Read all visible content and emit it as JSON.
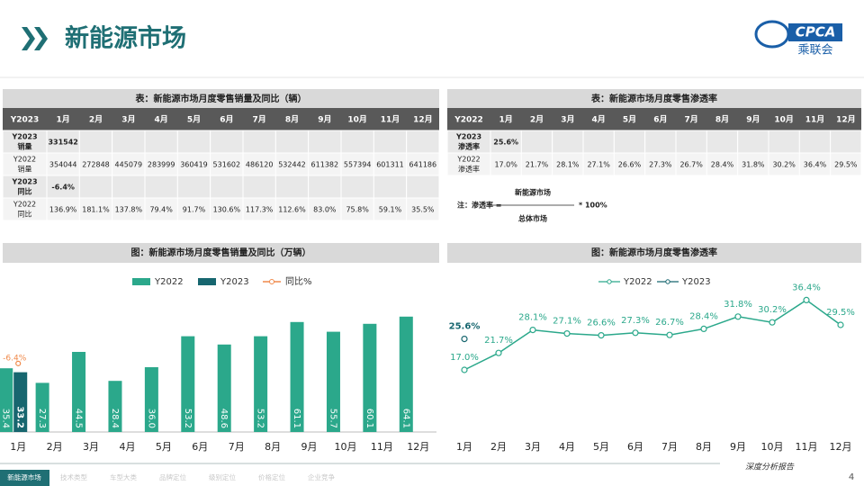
{
  "header": {
    "title": "新能源市场",
    "logo": "CPCA",
    "logo_sub": "乘联会"
  },
  "table1": {
    "title": "表：新能源市场月度零售销量及同比（辆）",
    "columns": [
      "Y2023",
      "1月",
      "2月",
      "3月",
      "4月",
      "5月",
      "6月",
      "7月",
      "8月",
      "9月",
      "10月",
      "11月",
      "12月"
    ],
    "rows": [
      {
        "label": [
          "Y2023",
          "销量"
        ],
        "cells": [
          "331542"
        ]
      },
      {
        "label": [
          "Y2022",
          "销量"
        ],
        "cells": [
          "354044",
          "272848",
          "445079",
          "283999",
          "360419",
          "531602",
          "486120",
          "532442",
          "611382",
          "557394",
          "601311",
          "641186"
        ]
      },
      {
        "label": [
          "Y2023",
          "同比"
        ],
        "cells": [
          "-6.4%"
        ]
      },
      {
        "label": [
          "Y2022",
          "同比"
        ],
        "cells": [
          "136.9%",
          "181.1%",
          "137.8%",
          "79.4%",
          "91.7%",
          "130.6%",
          "117.3%",
          "112.6%",
          "83.0%",
          "75.8%",
          "59.1%",
          "35.5%"
        ]
      }
    ]
  },
  "table2": {
    "title": "表：新能源市场月度零售渗透率",
    "columns": [
      "Y2022",
      "1月",
      "2月",
      "3月",
      "4月",
      "5月",
      "6月",
      "7月",
      "8月",
      "9月",
      "10月",
      "11月",
      "12月"
    ],
    "rows": [
      {
        "label": [
          "Y2023",
          "渗透率"
        ],
        "cells": [
          "25.6%"
        ]
      },
      {
        "label": [
          "Y2022",
          "渗透率"
        ],
        "cells": [
          "17.0%",
          "21.7%",
          "28.1%",
          "27.1%",
          "26.6%",
          "27.3%",
          "26.7%",
          "28.4%",
          "31.8%",
          "30.2%",
          "36.4%",
          "29.5%"
        ]
      }
    ]
  },
  "note": {
    "prefix": "注：渗透率 =",
    "numerator": "新能源市场",
    "denominator": "总体市场",
    "suffix": "* 100%"
  },
  "chart_data": [
    {
      "type": "bar",
      "title": "图：新能源市场月度零售销量及同比（万辆）",
      "categories": [
        "1月",
        "2月",
        "3月",
        "4月",
        "5月",
        "6月",
        "7月",
        "8月",
        "9月",
        "10月",
        "11月",
        "12月"
      ],
      "ylim": [
        0,
        70
      ],
      "y2lim": [
        -20,
        5
      ],
      "series": [
        {
          "name": "Y2022",
          "color": "#2ba88b",
          "values": [
            35.4,
            27.3,
            44.5,
            28.4,
            36.0,
            53.2,
            48.6,
            53.2,
            61.1,
            55.7,
            60.1,
            64.1
          ],
          "value_labels": [
            "35.4",
            "27.3",
            "44.5",
            "28.4",
            "36.0",
            "53.2",
            "48.6",
            "53.2",
            "61.1",
            "55.7",
            "60.1",
            "64.1"
          ]
        },
        {
          "name": "Y2023",
          "color": "#17666f",
          "values": [
            33.2,
            null,
            null,
            null,
            null,
            null,
            null,
            null,
            null,
            null,
            null,
            null
          ]
        },
        {
          "name": "同比%",
          "color": "#f08a4b",
          "axis": "y2",
          "type": "line",
          "values": [
            -6.4,
            null,
            null,
            null,
            null,
            null,
            null,
            null,
            null,
            null,
            null,
            null
          ],
          "value_labels": [
            "-6.4%",
            null,
            null,
            null,
            null,
            null,
            null,
            null,
            null,
            null,
            null,
            null
          ]
        }
      ]
    },
    {
      "type": "line",
      "title": "图：新能源市场月度零售渗透率",
      "categories": [
        "1月",
        "2月",
        "3月",
        "4月",
        "5月",
        "6月",
        "7月",
        "8月",
        "9月",
        "10月",
        "11月",
        "12月"
      ],
      "ylim": [
        0,
        45
      ],
      "series": [
        {
          "name": "Y2022",
          "color": "#2ba88b",
          "values": [
            17.0,
            21.7,
            28.1,
            27.1,
            26.6,
            27.3,
            26.7,
            28.4,
            31.8,
            30.2,
            36.4,
            29.5
          ],
          "value_labels": [
            "17.0%",
            "21.7%",
            "28.1%",
            "27.1%",
            "26.6%",
            "27.3%",
            "26.7%",
            "28.4%",
            "31.8%",
            "30.2%",
            "36.4%",
            "29.5%"
          ]
        },
        {
          "name": "Y2023",
          "color": "#17666f",
          "values": [
            25.6,
            null,
            null,
            null,
            null,
            null,
            null,
            null,
            null,
            null,
            null,
            null
          ],
          "value_labels": [
            "25.6%",
            null,
            null,
            null,
            null,
            null,
            null,
            null,
            null,
            null,
            null,
            null
          ]
        }
      ]
    }
  ],
  "footer": {
    "tabs": [
      "新能源市场",
      "技术类型",
      "车型大类",
      "品牌定位",
      "级别定位",
      "价格定位",
      "企业竞争"
    ],
    "report": "深度分析报告",
    "page": "4"
  }
}
